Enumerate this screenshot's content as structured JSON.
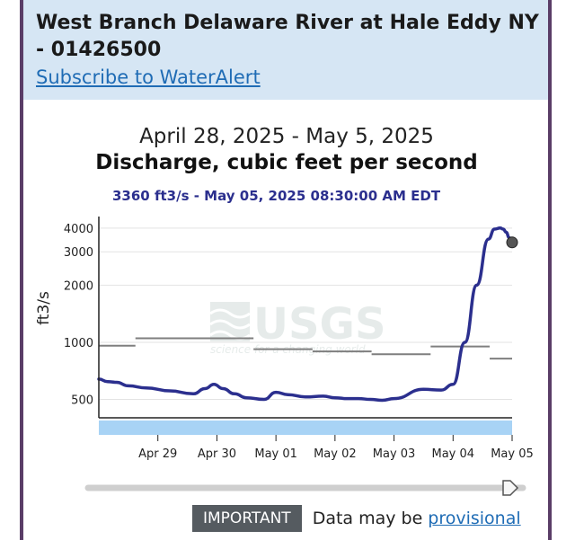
{
  "header": {
    "title": "West Branch Delaware River at Hale Eddy NY - 01426500",
    "subscribe_link": "Subscribe to WaterAlert"
  },
  "footer": {
    "important_label": "IMPORTANT",
    "note": "Data may be",
    "provisional_link": "provisional"
  },
  "colors": {
    "series": "#2b2f8e",
    "reference": "#7f7f7f",
    "header_bg": "#d6e6f4",
    "link": "#1f6cb5"
  },
  "chart_data": {
    "type": "line",
    "title": "April 28, 2025 - May 5, 2025",
    "subtitle": "Discharge, cubic feet per second",
    "current_reading": "3360 ft3/s - May 05, 2025 08:30:00 AM EDT",
    "ylabel": "ft3/s",
    "y_scale": "log",
    "ylim": [
      400,
      4600
    ],
    "yticks": [
      500,
      1000,
      2000,
      3000,
      4000
    ],
    "ytick_labels": [
      "500",
      "1000",
      "2000",
      "3000",
      "4000"
    ],
    "xlim": [
      0,
      7
    ],
    "x_unit": "days since Apr 28, 2025 00:00",
    "xticks": [
      1,
      2,
      3,
      4,
      5,
      6,
      7
    ],
    "xtick_labels": [
      "Apr 29",
      "Apr 30",
      "May 01",
      "May 02",
      "May 03",
      "May 04",
      "May 05"
    ],
    "grid": true,
    "watermark": {
      "logo": "USGS",
      "tagline": "science for a changing world"
    },
    "series": [
      {
        "name": "Discharge",
        "x": [
          0,
          0.15,
          0.3,
          0.5,
          0.8,
          1.2,
          1.6,
          1.8,
          1.95,
          2.1,
          2.3,
          2.5,
          2.8,
          3.0,
          3.2,
          3.5,
          3.8,
          4.0,
          4.2,
          4.4,
          4.6,
          4.8,
          5.0,
          5.5,
          5.8,
          6.0,
          6.2,
          6.4,
          6.6,
          6.7,
          6.8,
          6.85,
          6.9,
          6.95,
          7.0
        ],
        "y": [
          640,
          620,
          615,
          590,
          575,
          555,
          535,
          570,
          600,
          570,
          535,
          510,
          500,
          545,
          530,
          515,
          520,
          510,
          505,
          505,
          500,
          495,
          505,
          565,
          560,
          600,
          1000,
          2000,
          3500,
          3950,
          4000,
          3950,
          3800,
          3560,
          3360
        ]
      },
      {
        "name": "Reference",
        "segments": [
          {
            "x0": 0,
            "x1": 0.62,
            "y": 960
          },
          {
            "x0": 0.62,
            "x1": 2.62,
            "y": 1050
          },
          {
            "x0": 2.62,
            "x1": 3.62,
            "y": 920
          },
          {
            "x0": 3.62,
            "x1": 4.62,
            "y": 895
          },
          {
            "x0": 4.62,
            "x1": 5.62,
            "y": 865
          },
          {
            "x0": 5.62,
            "x1": 6.62,
            "y": 950
          },
          {
            "x0": 6.62,
            "x1": 7.0,
            "y": 820
          }
        ]
      }
    ]
  }
}
